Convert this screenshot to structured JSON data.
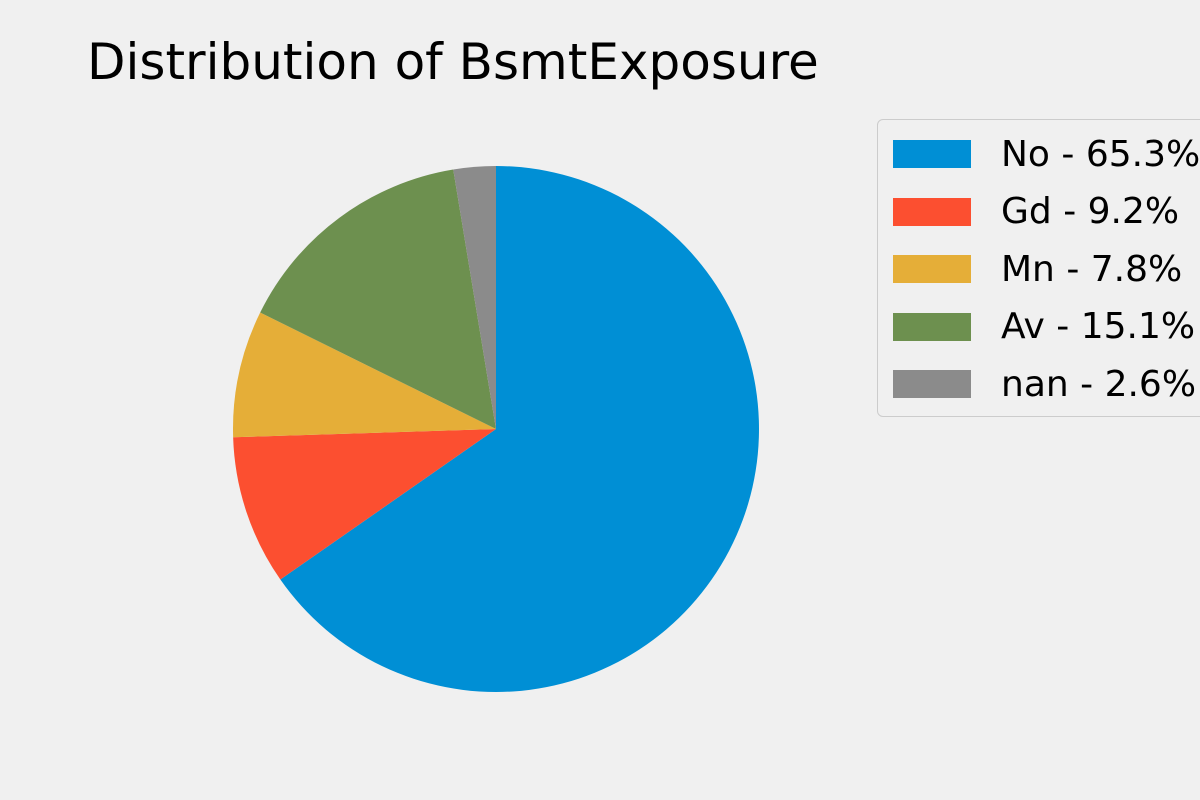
{
  "chart_data": {
    "type": "pie",
    "title": "Distribution of BsmtExposure",
    "start_angle_deg": 90,
    "direction": "clockwise",
    "slices": [
      {
        "label": "No",
        "value": 65.3,
        "legend": "No - 65.3%",
        "color": "#008fd5"
      },
      {
        "label": "Gd",
        "value": 9.2,
        "legend": "Gd - 9.2%",
        "color": "#fc4f30"
      },
      {
        "label": "Mn",
        "value": 7.8,
        "legend": "Mn - 7.8%",
        "color": "#e5ae38"
      },
      {
        "label": "Av",
        "value": 15.1,
        "legend": "Av - 15.1%",
        "color": "#6d904f"
      },
      {
        "label": "nan",
        "value": 2.6,
        "legend": "nan - 2.6%",
        "color": "#8b8b8b"
      }
    ],
    "legend_position": "right",
    "background": "#f0f0f0"
  }
}
